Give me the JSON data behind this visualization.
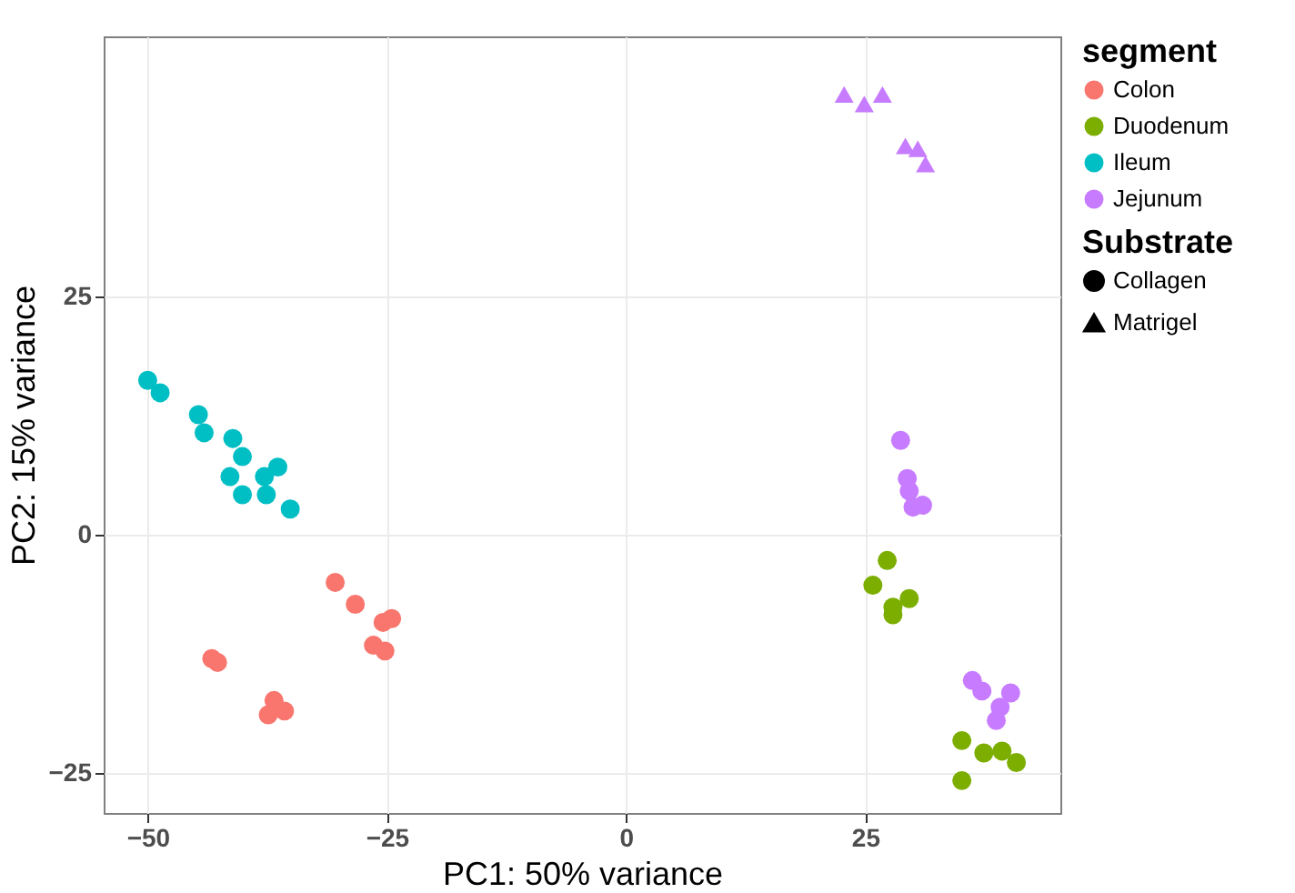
{
  "chart_data": {
    "type": "scatter",
    "xlabel": "PC1: 50% variance",
    "ylabel": "PC2: 15% variance",
    "legend_title": [
      "segment",
      "Substrate"
    ],
    "annotations": [
      "Collagen",
      "Matrigel"
    ],
    "legend": "right",
    "grid": true,
    "xlim": [
      -54.6,
      45.4
    ],
    "xticks": [
      -50,
      -25,
      0,
      25
    ],
    "ylim": [
      -29.2,
      52.3
    ],
    "yticks": [
      -25,
      0,
      25
    ],
    "series": [
      {
        "name": "Colon",
        "color": "#f8766d",
        "marker": "circle",
        "x": [
          -30.4,
          -28.3,
          -25.4,
          -24.5,
          -26.4,
          -25.2,
          -43.3,
          -42.7,
          -36.8,
          -37.4,
          -35.7
        ],
        "values": [
          -5.0,
          -7.3,
          -9.2,
          -8.8,
          -11.6,
          -12.2,
          -13.0,
          -13.4,
          -17.4,
          -18.9,
          -18.5
        ]
      },
      {
        "name": "Duodenum",
        "color": "#7cae00",
        "marker": "circle",
        "x": [
          27.3,
          25.8,
          29.6,
          27.9,
          27.9,
          35.1,
          37.4,
          39.3,
          40.8,
          35.1
        ],
        "values": [
          -2.7,
          -5.3,
          -6.7,
          -7.6,
          -8.4,
          -21.6,
          -22.9,
          -22.7,
          -23.9,
          -25.8
        ]
      },
      {
        "name": "Ileum",
        "color": "#00bfc4",
        "marker": "circle",
        "x": [
          -50.0,
          -48.7,
          -44.7,
          -44.1,
          -41.1,
          -41.4,
          -40.1,
          -40.1,
          -37.8,
          -36.4,
          -37.6,
          -35.1
        ],
        "values": [
          16.2,
          14.9,
          12.6,
          10.7,
          10.1,
          6.1,
          8.2,
          4.2,
          6.1,
          7.1,
          4.2,
          2.7
        ]
      },
      {
        "name": "Jejunum",
        "color": "#c77cff",
        "marker": "circle",
        "x": [
          28.7,
          29.4,
          29.6,
          30.0,
          31.0,
          36.2,
          37.2,
          40.2,
          39.1,
          38.7
        ],
        "values": [
          9.9,
          5.9,
          4.6,
          2.9,
          3.1,
          -15.3,
          -16.4,
          -16.6,
          -18.1,
          -19.5
        ]
      },
      {
        "color": "#c77cff",
        "marker": "triangle",
        "x": [
          22.8,
          24.9,
          26.8,
          29.2,
          30.5,
          31.3
        ],
        "values": [
          46.2,
          45.2,
          46.2,
          40.8,
          40.5,
          38.9
        ]
      }
    ]
  }
}
